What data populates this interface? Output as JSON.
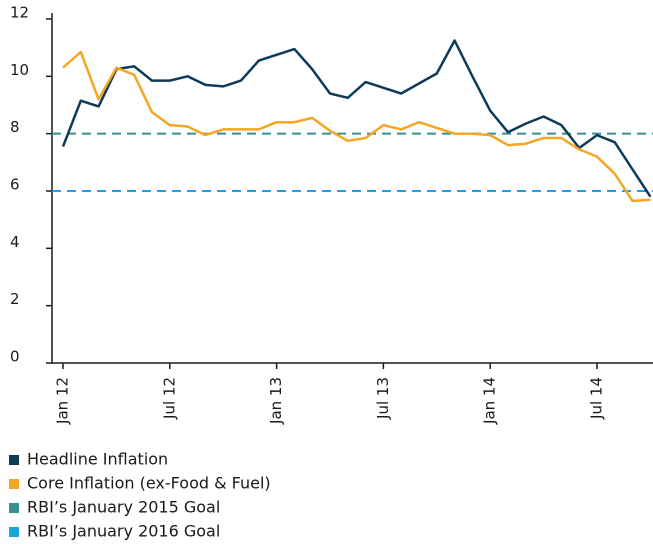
{
  "chart_data": {
    "type": "line",
    "categories": [
      "Jan 12",
      null,
      null,
      null,
      null,
      null,
      "Jul 12",
      null,
      null,
      null,
      null,
      null,
      "Jan 13",
      null,
      null,
      null,
      null,
      null,
      "Jul 13",
      null,
      null,
      null,
      null,
      null,
      "Jan 14",
      null,
      null,
      null,
      null,
      null,
      "Jul 14",
      null,
      null,
      null
    ],
    "series": [
      {
        "name": "Headline Inflation",
        "color": "#0d3b5a",
        "values": [
          7.55,
          9.15,
          8.95,
          10.25,
          10.35,
          9.85,
          9.85,
          10.0,
          9.7,
          9.65,
          9.85,
          10.55,
          10.75,
          10.95,
          10.25,
          9.4,
          9.25,
          9.8,
          9.6,
          9.4,
          9.75,
          10.1,
          11.25,
          10.0,
          8.8,
          8.05,
          8.35,
          8.6,
          8.3,
          7.5,
          7.95,
          7.7,
          6.75,
          5.8
        ]
      },
      {
        "name": "Core Inflation (ex-Food & Fuel)",
        "color": "#f5a623",
        "values": [
          10.3,
          10.85,
          9.2,
          10.3,
          10.05,
          8.75,
          8.3,
          8.25,
          7.95,
          8.15,
          8.15,
          8.15,
          8.4,
          8.4,
          8.55,
          8.1,
          7.75,
          7.85,
          8.3,
          8.15,
          8.4,
          8.2,
          8.0,
          8.0,
          7.95,
          7.6,
          7.65,
          7.85,
          7.85,
          7.45,
          7.2,
          6.6,
          5.65,
          5.7
        ]
      }
    ],
    "reference_lines": [
      {
        "name": "RBI’s January 2015 Goal",
        "color": "#3a8f94",
        "value": 8
      },
      {
        "name": "RBI’s January 2016 Goal",
        "color": "#1ba3dc",
        "value": 6
      }
    ],
    "ylim": [
      0,
      12
    ],
    "yticks": [
      0,
      2,
      4,
      6,
      8,
      10,
      12
    ],
    "grid": false
  }
}
